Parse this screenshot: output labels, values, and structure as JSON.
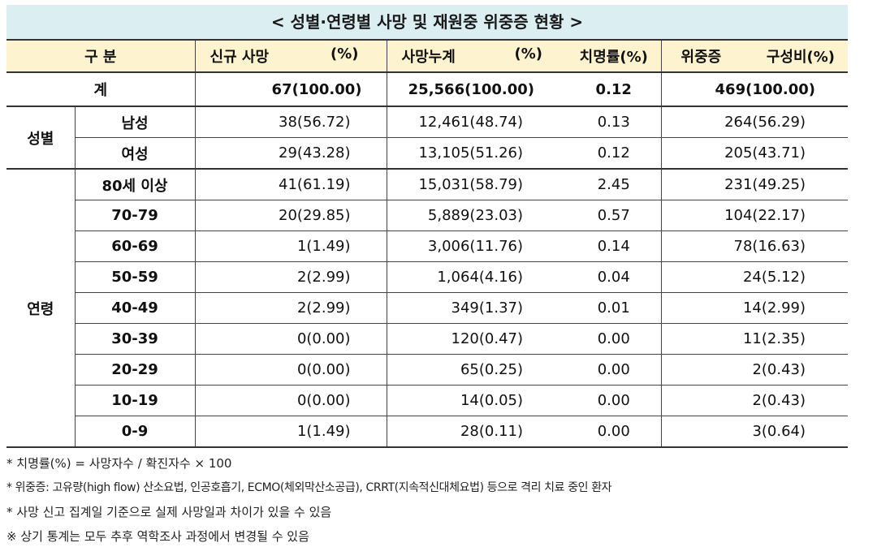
{
  "title": "< 성별·연령별 사망 및 재원중 위중증 현황 >",
  "header": {
    "group": "구 분",
    "new_deaths": "신규 사망",
    "new_deaths_unit": "(%)",
    "cum_deaths": "사망누계",
    "cum_deaths_unit": "(%)",
    "cfr": "치명률(%)",
    "severe": "위중증",
    "severe_unit": "구성비(%)"
  },
  "total": {
    "label": "계",
    "new_deaths": "67(100.00)",
    "cum_deaths": "25,566(100.00)",
    "cfr": "0.12",
    "severe": "469(100.00)"
  },
  "sex": {
    "label": "성별",
    "rows": [
      {
        "label": "남성",
        "new_deaths": "38(56.72)",
        "cum_deaths": "12,461(48.74)",
        "cfr": "0.13",
        "severe": "264(56.29)"
      },
      {
        "label": "여성",
        "new_deaths": "29(43.28)",
        "cum_deaths": "13,105(51.26)",
        "cfr": "0.12",
        "severe": "205(43.71)"
      }
    ]
  },
  "age": {
    "label": "연령",
    "rows": [
      {
        "label": "80세 이상",
        "new_deaths": "41(61.19)",
        "cum_deaths": "15,031(58.79)",
        "cfr": "2.45",
        "severe": "231(49.25)"
      },
      {
        "label": "70-79",
        "new_deaths": "20(29.85)",
        "cum_deaths": "5,889(23.03)",
        "cfr": "0.57",
        "severe": "104(22.17)"
      },
      {
        "label": "60-69",
        "new_deaths": "1(1.49)",
        "cum_deaths": "3,006(11.76)",
        "cfr": "0.14",
        "severe": "78(16.63)"
      },
      {
        "label": "50-59",
        "new_deaths": "2(2.99)",
        "cum_deaths": "1,064(4.16)",
        "cfr": "0.04",
        "severe": "24(5.12)"
      },
      {
        "label": "40-49",
        "new_deaths": "2(2.99)",
        "cum_deaths": "349(1.37)",
        "cfr": "0.01",
        "severe": "14(2.99)"
      },
      {
        "label": "30-39",
        "new_deaths": "0(0.00)",
        "cum_deaths": "120(0.47)",
        "cfr": "0.00",
        "severe": "11(2.35)"
      },
      {
        "label": "20-29",
        "new_deaths": "0(0.00)",
        "cum_deaths": "65(0.25)",
        "cfr": "0.00",
        "severe": "2(0.43)"
      },
      {
        "label": "10-19",
        "new_deaths": "0(0.00)",
        "cum_deaths": "14(0.05)",
        "cfr": "0.00",
        "severe": "2(0.43)"
      },
      {
        "label": "0-9",
        "new_deaths": "1(1.49)",
        "cum_deaths": "28(0.11)",
        "cfr": "0.00",
        "severe": "3(0.64)"
      }
    ]
  },
  "notes": [
    "* 치명률(%) = 사망자수 / 확진자수 × 100",
    "* 위중증: 고유량(high flow) 산소요법, 인공호흡기, ECMO(체외막산소공급), CRRT(지속적신대체요법) 등으로 격리 치료 중인 환자",
    "* 사망 신고 집계일 기준으로 실제 사망일과 차이가 있을 수 있음",
    "※ 상기 통계는 모두 추후 역학조사 과정에서 변경될 수 있음"
  ]
}
